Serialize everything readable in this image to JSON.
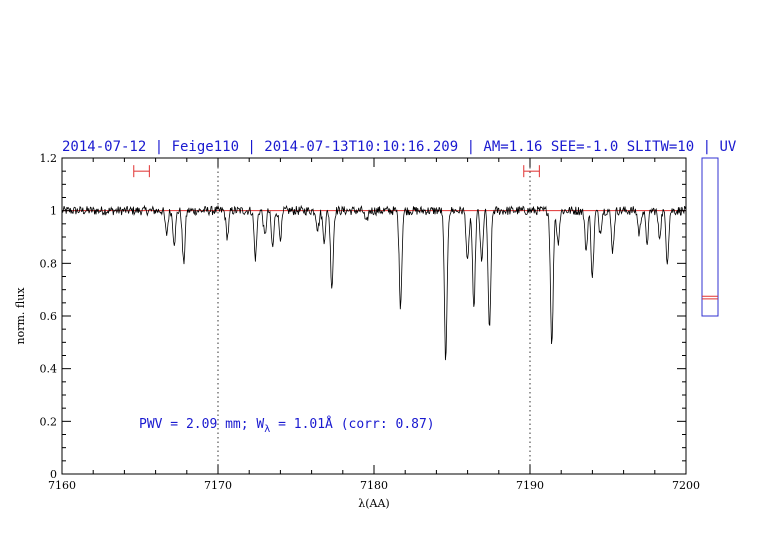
{
  "chart_data": {
    "type": "line",
    "title": "2014-07-12 | Feige110 | 2014-07-13T10:10:16.209 | AM=1.16  SEE=-1.0  SLITW=10 | UV",
    "xlabel": "λ(AA)",
    "ylabel": "norm. flux",
    "xlim": [
      7160,
      7200
    ],
    "ylim": [
      0,
      1.2
    ],
    "xticks": [
      7160,
      7170,
      7180,
      7190,
      7200
    ],
    "yticks": [
      0,
      0.2,
      0.4,
      0.6,
      0.8,
      1,
      1.2
    ],
    "xtick_labels": [
      "7160",
      "7170",
      "7180",
      "7190",
      "7200"
    ],
    "ytick_labels": [
      "0",
      "0.2",
      "0.4",
      "0.6",
      "0.8",
      "1",
      "1.2"
    ],
    "annotation": {
      "prefix": "PWV = 2.09 mm; W",
      "sub": "λ",
      "suffix": " = 1.01Å (corr: 0.87)"
    },
    "reference_level": 1.0,
    "dotted_verticals": [
      7170,
      7190
    ],
    "error_bars": [
      {
        "x_min": 7164.6,
        "x_max": 7165.6,
        "y": 1.15
      },
      {
        "x_min": 7189.6,
        "x_max": 7190.6,
        "y": 1.15
      }
    ],
    "side_panel": {
      "ylim": [
        0.6,
        1.2
      ],
      "markers": [
        0.665,
        0.675
      ]
    },
    "absorption_lines": [
      {
        "x": 7166.7,
        "depth": 0.09
      },
      {
        "x": 7167.2,
        "depth": 0.12
      },
      {
        "x": 7167.8,
        "depth": 0.2
      },
      {
        "x": 7170.6,
        "depth": 0.1
      },
      {
        "x": 7172.4,
        "depth": 0.18
      },
      {
        "x": 7173.0,
        "depth": 0.1
      },
      {
        "x": 7173.5,
        "depth": 0.14
      },
      {
        "x": 7174.0,
        "depth": 0.1
      },
      {
        "x": 7176.4,
        "depth": 0.07
      },
      {
        "x": 7176.8,
        "depth": 0.11
      },
      {
        "x": 7177.3,
        "depth": 0.29
      },
      {
        "x": 7179.5,
        "depth": 0.05
      },
      {
        "x": 7181.7,
        "depth": 0.36
      },
      {
        "x": 7184.6,
        "depth": 0.57
      },
      {
        "x": 7186.0,
        "depth": 0.2
      },
      {
        "x": 7186.4,
        "depth": 0.38
      },
      {
        "x": 7186.9,
        "depth": 0.2
      },
      {
        "x": 7187.4,
        "depth": 0.46
      },
      {
        "x": 7191.4,
        "depth": 0.51
      },
      {
        "x": 7191.8,
        "depth": 0.12
      },
      {
        "x": 7193.6,
        "depth": 0.15
      },
      {
        "x": 7194.0,
        "depth": 0.25
      },
      {
        "x": 7194.5,
        "depth": 0.08
      },
      {
        "x": 7195.3,
        "depth": 0.15
      },
      {
        "x": 7197.0,
        "depth": 0.09
      },
      {
        "x": 7197.5,
        "depth": 0.12
      },
      {
        "x": 7198.3,
        "depth": 0.1
      },
      {
        "x": 7198.8,
        "depth": 0.19
      }
    ],
    "colors": {
      "spectrum": "#000000",
      "reference": "#e03030",
      "title": "#1a1ad0",
      "annotation": "#1a1ad0",
      "panel": "#3030d0"
    }
  }
}
